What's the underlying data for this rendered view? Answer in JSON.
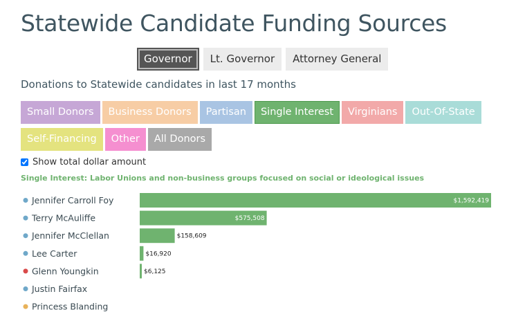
{
  "title": "Statewide Candidate Funding Sources",
  "office_tabs": [
    {
      "label": "Governor",
      "active": true
    },
    {
      "label": "Lt. Governor",
      "active": false
    },
    {
      "label": "Attorney General",
      "active": false
    }
  ],
  "subtitle": "Donations to Statewide candidates in last 17 months",
  "categories": [
    {
      "label": "Small Donors",
      "color": "#c6a7d6",
      "active": false
    },
    {
      "label": "Business Donors",
      "color": "#f7cda5",
      "active": false
    },
    {
      "label": "Partisan",
      "color": "#a9c4e3",
      "active": false
    },
    {
      "label": "Single Interest",
      "color": "#6fb36f",
      "active": true
    },
    {
      "label": "Virginians",
      "color": "#f2a9a9",
      "active": false
    },
    {
      "label": "Out-Of-State",
      "color": "#a9dcd8",
      "active": false
    },
    {
      "label": "Self-Financing",
      "color": "#e4e37f",
      "active": false
    },
    {
      "label": "Other",
      "color": "#f58fd0",
      "active": false
    },
    {
      "label": "All Donors",
      "color": "#a9a9a9",
      "active": false
    }
  ],
  "show_total_label": "Show total dollar amount",
  "show_total_checked": true,
  "description": "Single Interest: Labor Unions and non-business groups focused on social or ideological issues",
  "chart_data": {
    "type": "bar",
    "orientation": "horizontal",
    "bar_color": "#6fb36f",
    "categories": [
      "Jennifer Carroll Foy",
      "Terry McAuliffe",
      "Jennifer McClellan",
      "Lee Carter",
      "Glenn Youngkin",
      "Justin Fairfax",
      "Princess Blanding"
    ],
    "party_colors": [
      "#6fa8c9",
      "#6fa8c9",
      "#6fa8c9",
      "#6fa8c9",
      "#d94a4a",
      "#6fa8c9",
      "#e8b25a"
    ],
    "values": [
      1592419,
      575508,
      158609,
      16920,
      6125,
      0,
      0
    ],
    "value_labels": [
      "$1,592,419",
      "$575,508",
      "$158,609",
      "$16,920",
      "$6,125",
      "",
      ""
    ],
    "xlim": [
      0,
      1592419
    ]
  }
}
